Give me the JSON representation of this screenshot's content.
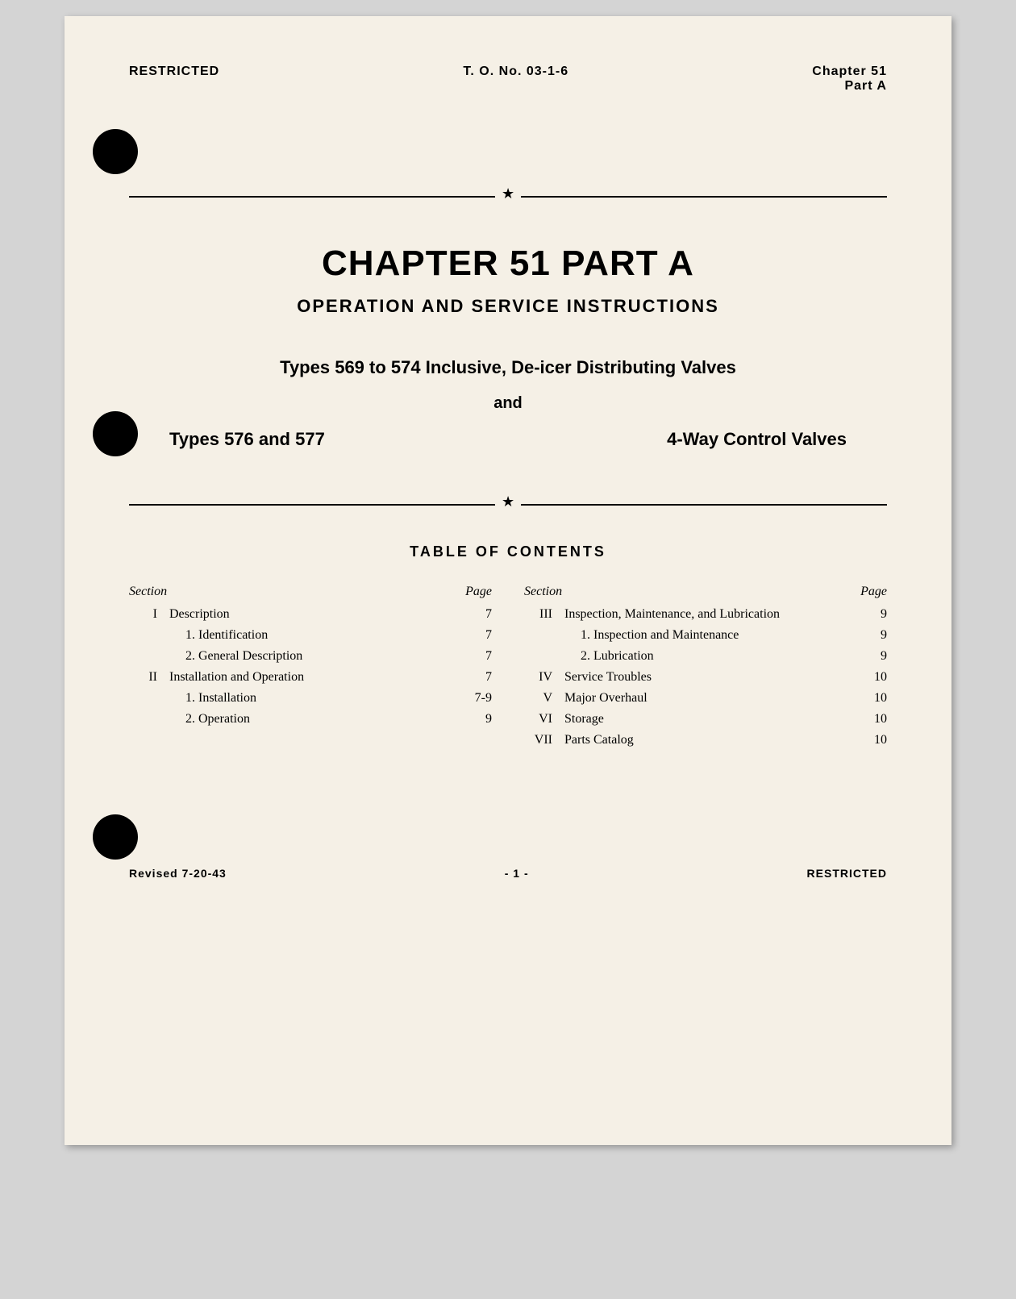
{
  "header": {
    "left": "RESTRICTED",
    "center": "T. O. No. 03-1-6",
    "right_line1": "Chapter 51",
    "right_line2": "Part A"
  },
  "title": {
    "chapter": "CHAPTER 51  PART A",
    "subtitle": "OPERATION AND SERVICE INSTRUCTIONS",
    "desc_line1": "Types 569 to 574 Inclusive, De-icer Distributing Valves",
    "desc_and": "and",
    "desc_line2_left": "Types 576 and 577",
    "desc_line2_right": "4-Way Control Valves"
  },
  "toc": {
    "title": "TABLE OF CONTENTS",
    "header_section": "Section",
    "header_page": "Page",
    "left_column": [
      {
        "num": "I",
        "text": "Description",
        "page": "7",
        "sub": false
      },
      {
        "num": "",
        "text": "1. Identification",
        "page": "7",
        "sub": true
      },
      {
        "num": "",
        "text": "2. General Description",
        "page": "7",
        "sub": true
      },
      {
        "num": "II",
        "text": "Installation and Operation",
        "page": "7",
        "sub": false
      },
      {
        "num": "",
        "text": "1. Installation",
        "page": "7-9",
        "sub": true
      },
      {
        "num": "",
        "text": "2. Operation",
        "page": "9",
        "sub": true
      }
    ],
    "right_column": [
      {
        "num": "III",
        "text": "Inspection, Maintenance, and Lubrication",
        "page": "9",
        "sub": false
      },
      {
        "num": "",
        "text": "1. Inspection and Maintenance",
        "page": "9",
        "sub": true
      },
      {
        "num": "",
        "text": "2. Lubrication",
        "page": "9",
        "sub": true
      },
      {
        "num": "IV",
        "text": "Service Troubles",
        "page": "10",
        "sub": false
      },
      {
        "num": "V",
        "text": "Major Overhaul",
        "page": "10",
        "sub": false
      },
      {
        "num": "VI",
        "text": "Storage",
        "page": "10",
        "sub": false
      },
      {
        "num": "VII",
        "text": "Parts Catalog",
        "page": "10",
        "sub": false
      }
    ]
  },
  "footer": {
    "left": "Revised 7-20-43",
    "center": "- 1 -",
    "right": "RESTRICTED"
  },
  "colors": {
    "page_bg": "#f5f0e6",
    "text": "#000000",
    "outer_bg": "#d4d4d4"
  }
}
